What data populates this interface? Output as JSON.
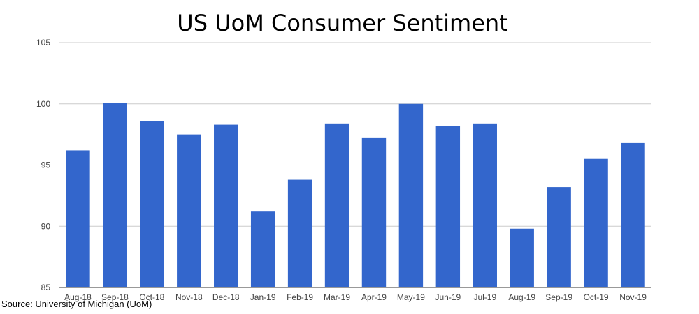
{
  "chart_data": {
    "type": "bar",
    "title": "US UoM Consumer Sentiment",
    "source": "Source: University of Michigan (UoM)",
    "categories": [
      "Aug-18",
      "Sep-18",
      "Oct-18",
      "Nov-18",
      "Dec-18",
      "Jan-19",
      "Feb-19",
      "Mar-19",
      "Apr-19",
      "May-19",
      "Jun-19",
      "Jul-19",
      "Aug-19",
      "Sep-19",
      "Oct-19",
      "Nov-19"
    ],
    "values": [
      96.2,
      100.1,
      98.6,
      97.5,
      98.3,
      91.2,
      93.8,
      98.4,
      97.2,
      100.0,
      98.2,
      98.4,
      89.8,
      93.2,
      95.5,
      96.8
    ],
    "ylim": [
      85,
      105
    ],
    "yticks": [
      85,
      90,
      95,
      100,
      105
    ],
    "grid": true,
    "legend": "none",
    "bar_color": "#3366cc",
    "grid_color": "#cccccc"
  }
}
